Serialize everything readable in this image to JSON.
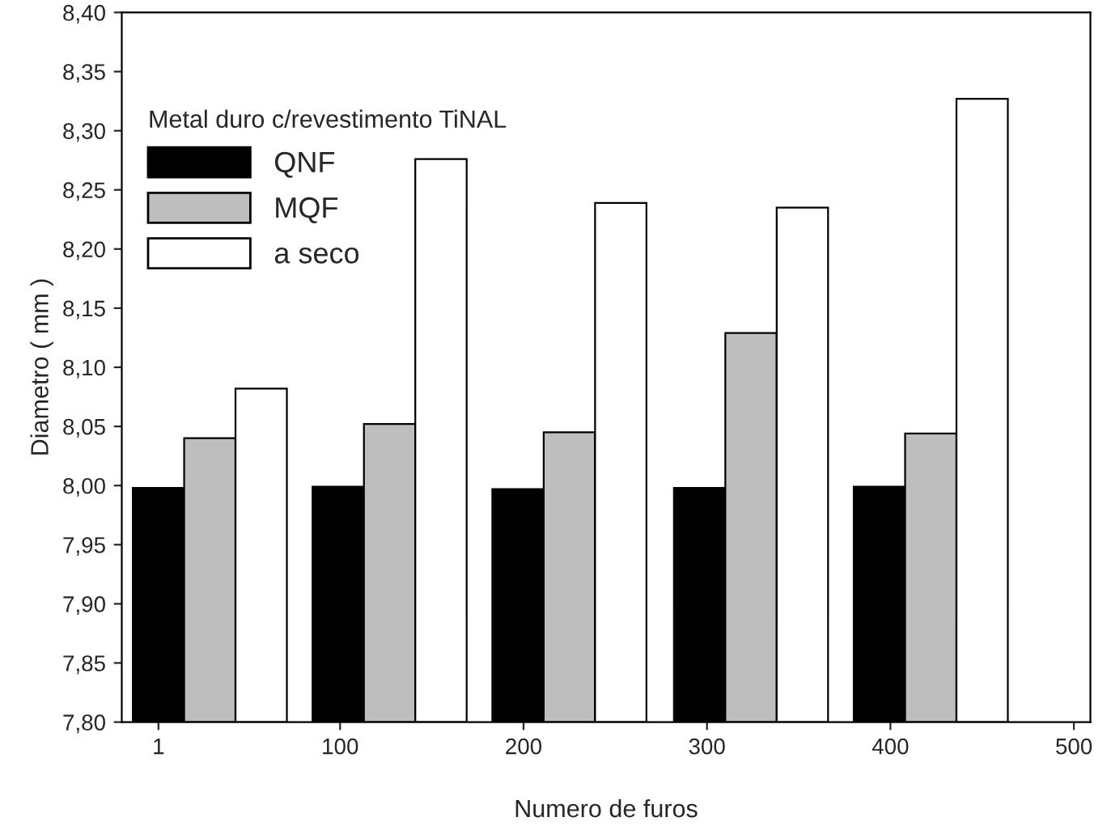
{
  "chart_data": {
    "type": "bar",
    "xlabel": "Numero de furos",
    "ylabel": "Diametro ( mm )",
    "legend_title": "Metal duro c/revestimento TiNAL",
    "x": [
      29,
      127,
      225,
      324,
      422
    ],
    "series": [
      {
        "name": "QNF",
        "color": "#000000",
        "values": [
          7.998,
          7.999,
          7.997,
          7.998,
          7.999
        ]
      },
      {
        "name": "MQF",
        "color": "#bebebe",
        "values": [
          8.04,
          8.052,
          8.045,
          8.129,
          8.044
        ]
      },
      {
        "name": "a seco",
        "color": "#ffffff",
        "values": [
          8.082,
          8.276,
          8.239,
          8.235,
          8.327
        ]
      }
    ],
    "xlim": [
      -19,
      509
    ],
    "xticks": [
      1,
      100,
      200,
      300,
      400,
      500
    ],
    "ylim": [
      7.8,
      8.4
    ],
    "yticks": [
      {
        "value": 7.8,
        "label": "7,80"
      },
      {
        "value": 7.85,
        "label": "7,85"
      },
      {
        "value": 7.9,
        "label": "7,90"
      },
      {
        "value": 7.95,
        "label": "7,95"
      },
      {
        "value": 8.0,
        "label": "8,00"
      },
      {
        "value": 8.05,
        "label": "8,05"
      },
      {
        "value": 8.1,
        "label": "8,10"
      },
      {
        "value": 8.15,
        "label": "8,15"
      },
      {
        "value": 8.2,
        "label": "8,20"
      },
      {
        "value": 8.25,
        "label": "8,25"
      },
      {
        "value": 8.3,
        "label": "8,30"
      },
      {
        "value": 8.35,
        "label": "8,35"
      },
      {
        "value": 8.4,
        "label": "8,40"
      }
    ],
    "grid": false,
    "legend": "top left"
  }
}
